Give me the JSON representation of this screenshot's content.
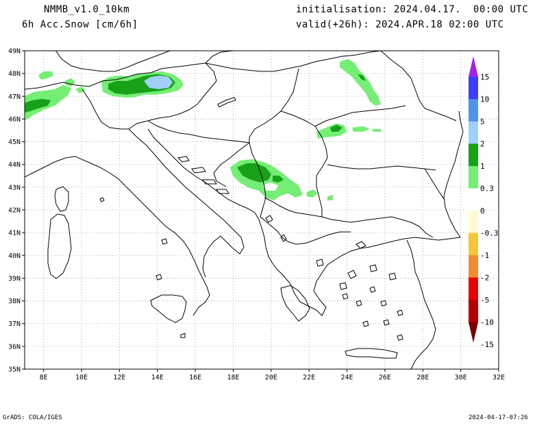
{
  "header": {
    "model": "NMMB_v1.0_10km",
    "field": "6h Acc.Snow [cm/6h]",
    "init": "initialisation: 2024.04.17.  00:00 UTC",
    "valid": "valid(+26h): 2024.APR.18 02:00 UTC"
  },
  "footer": {
    "left": "GrADS: COLA/IGES",
    "right": "2024-04-17-07:26"
  },
  "map": {
    "lat_labels": [
      "49N",
      "48N",
      "47N",
      "46N",
      "45N",
      "44N",
      "43N",
      "42N",
      "41N",
      "40N",
      "39N",
      "38N",
      "37N",
      "36N",
      "35N"
    ],
    "lon_labels": [
      "8E",
      "10E",
      "12E",
      "14E",
      "16E",
      "18E",
      "20E",
      "22E",
      "24E",
      "26E",
      "28E",
      "30E",
      "32E"
    ],
    "lat_range": [
      35,
      49
    ],
    "lon_range": [
      7,
      32
    ],
    "grid": "dotted"
  },
  "colorbar": {
    "labels": [
      "15",
      "10",
      "5",
      "2",
      "1",
      "0.3",
      "0",
      "-0.3",
      "-1",
      "-2",
      "-5",
      "-10",
      "-15"
    ],
    "colors": [
      "#a020f0",
      "#3c3cff",
      "#4f94e8",
      "#a0d0f8",
      "#18a018",
      "#74ee74",
      "#ffffff",
      "#fffad2",
      "#f5c63c",
      "#f08c32",
      "#e60000",
      "#b40000",
      "#780000"
    ]
  }
}
